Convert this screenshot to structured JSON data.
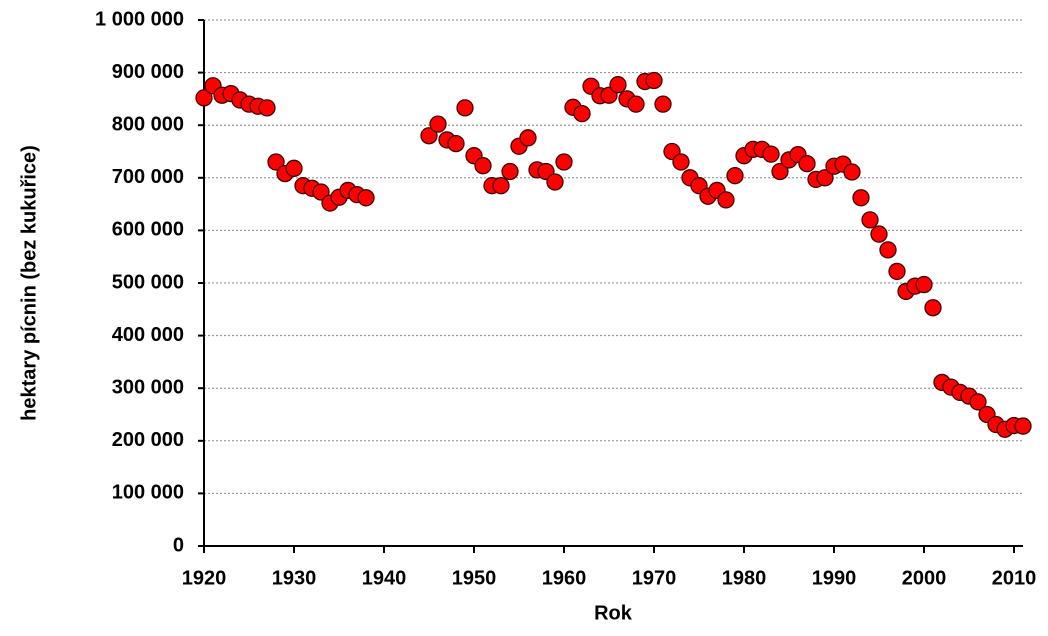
{
  "chart_data": {
    "type": "scatter",
    "x_label": "Rok",
    "y_label": "hektary pícnin (bez kukuřice)",
    "color": "#ff0000",
    "xlim": [
      1920,
      2011
    ],
    "xticks": [
      1920,
      1930,
      1940,
      1950,
      1960,
      1970,
      1980,
      1990,
      2000,
      2010
    ],
    "ylim": [
      0,
      1000000
    ],
    "yticks": [
      0,
      {
        "value": 100000,
        "label": "100 000"
      },
      {
        "value": 200000,
        "label": "200 000"
      },
      {
        "value": 300000,
        "label": "300 000"
      },
      {
        "value": 400000,
        "label": "400 000"
      },
      {
        "value": 500000,
        "label": "500 000"
      },
      {
        "value": 600000,
        "label": "600 000"
      },
      {
        "value": 700000,
        "label": "700 000"
      },
      {
        "value": 800000,
        "label": "800 000"
      },
      {
        "value": 900000,
        "label": "900 000"
      },
      {
        "value": 1000000,
        "label": "1 000 000"
      }
    ],
    "grid": true,
    "x": [
      1920,
      1921,
      1922,
      1923,
      1924,
      1925,
      1926,
      1927,
      1928,
      1929,
      1930,
      1931,
      1932,
      1933,
      1934,
      1935,
      1936,
      1937,
      1938,
      1945,
      1946,
      1947,
      1948,
      1949,
      1950,
      1951,
      1952,
      1953,
      1954,
      1955,
      1956,
      1957,
      1958,
      1959,
      1960,
      1961,
      1962,
      1963,
      1964,
      1965,
      1966,
      1967,
      1968,
      1969,
      1970,
      1971,
      1972,
      1973,
      1974,
      1975,
      1976,
      1977,
      1978,
      1979,
      1980,
      1981,
      1982,
      1983,
      1984,
      1985,
      1986,
      1987,
      1988,
      1989,
      1990,
      1991,
      1992,
      1993,
      1994,
      1995,
      1996,
      1997,
      1998,
      1999,
      2000,
      2001,
      2002,
      2003,
      2004,
      2005,
      2006,
      2007,
      2008,
      2009,
      2010,
      2011
    ],
    "values": [
      852000,
      875000,
      857000,
      860000,
      848000,
      840000,
      836000,
      833000,
      730000,
      708000,
      718000,
      685000,
      680000,
      673000,
      652000,
      663000,
      676000,
      668000,
      662000,
      780000,
      802000,
      772000,
      765000,
      833000,
      742000,
      723000,
      685000,
      685000,
      712000,
      760000,
      776000,
      715000,
      712000,
      692000,
      730000,
      834000,
      822000,
      874000,
      856000,
      857000,
      877000,
      850000,
      840000,
      883000,
      885000,
      840000,
      750000,
      730000,
      700000,
      685000,
      665000,
      676000,
      658000,
      704000,
      742000,
      754000,
      754000,
      745000,
      712000,
      734000,
      744000,
      727000,
      697000,
      700000,
      722000,
      726000,
      711000,
      662000,
      620000,
      593000,
      563000,
      522000,
      484000,
      494000,
      497000,
      453000,
      311000,
      302000,
      292000,
      285000,
      274000,
      250000,
      231000,
      222000,
      229000,
      228000
    ]
  }
}
